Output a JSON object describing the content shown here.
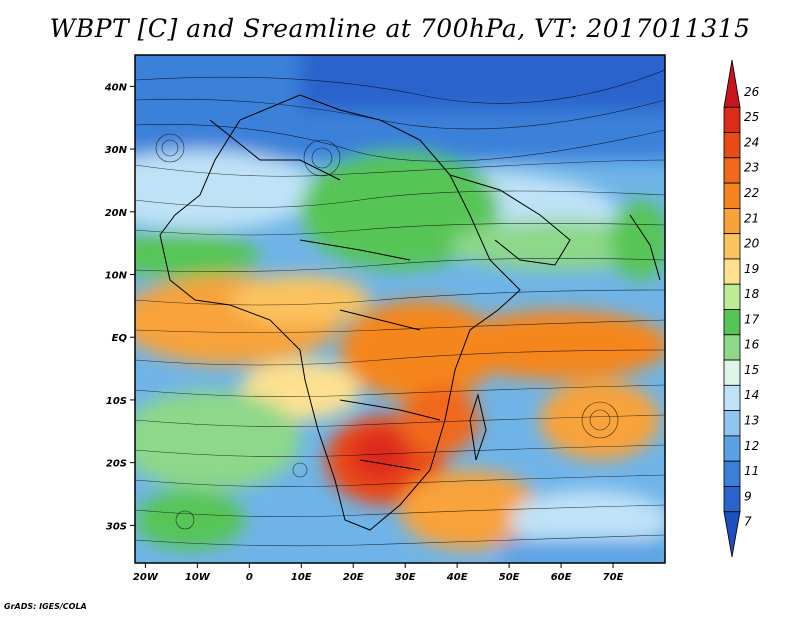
{
  "title": "WBPT [C] and Sreamline at 700hPa, VT: 2017011315",
  "credit": "GrADS: IGES/COLA",
  "map": {
    "lon_ticks": [
      {
        "lon": -20,
        "label": "20W"
      },
      {
        "lon": -10,
        "label": "10W"
      },
      {
        "lon": 0,
        "label": "0"
      },
      {
        "lon": 10,
        "label": "10E"
      },
      {
        "lon": 20,
        "label": "20E"
      },
      {
        "lon": 30,
        "label": "30E"
      },
      {
        "lon": 40,
        "label": "40E"
      },
      {
        "lon": 50,
        "label": "50E"
      },
      {
        "lon": 60,
        "label": "60E"
      },
      {
        "lon": 70,
        "label": "70E"
      }
    ],
    "lat_ticks": [
      {
        "lat": 40,
        "label": "40N"
      },
      {
        "lat": 30,
        "label": "30N"
      },
      {
        "lat": 20,
        "label": "20N"
      },
      {
        "lat": 10,
        "label": "10N"
      },
      {
        "lat": 0,
        "label": "EQ"
      },
      {
        "lat": -10,
        "label": "10S"
      },
      {
        "lat": -20,
        "label": "20S"
      },
      {
        "lat": -30,
        "label": "30S"
      }
    ],
    "lon_range": [
      -22,
      80
    ],
    "lat_range": [
      -36,
      45
    ]
  },
  "colorbar": {
    "levels": [
      "26",
      "25",
      "24",
      "23",
      "22",
      "21",
      "20",
      "19",
      "18",
      "17",
      "16",
      "15",
      "14",
      "13",
      "12",
      "11",
      "9",
      "7"
    ],
    "colors": [
      "#c8141e",
      "#dd2b1a",
      "#ea4a16",
      "#f0691c",
      "#f5861f",
      "#f8a33a",
      "#fbc35e",
      "#fde190",
      "#bdec96",
      "#57c556",
      "#8dd889",
      "#dff5e7",
      "#bfe2f7",
      "#8fc5ef",
      "#5aa2e4",
      "#3a80d9",
      "#2a63cc",
      "#1d4fbf"
    ]
  }
}
